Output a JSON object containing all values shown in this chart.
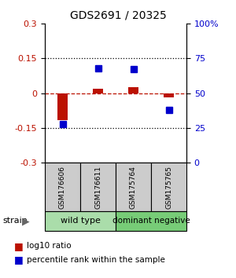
{
  "title": "GDS2691 / 20325",
  "samples": [
    "GSM176606",
    "GSM176611",
    "GSM175764",
    "GSM175765"
  ],
  "log10_ratio": [
    -0.115,
    0.02,
    0.025,
    -0.02
  ],
  "percentile_rank": [
    28,
    68,
    67,
    38
  ],
  "ylim_left": [
    -0.3,
    0.3
  ],
  "ylim_right": [
    0,
    100
  ],
  "yticks_left": [
    -0.3,
    -0.15,
    0,
    0.15,
    0.3
  ],
  "yticks_right": [
    0,
    25,
    50,
    75,
    100
  ],
  "ytick_labels_right": [
    "0",
    "25",
    "50",
    "75",
    "100%"
  ],
  "red_color": "#bb1100",
  "blue_color": "#0000cc",
  "bar_width": 0.3,
  "marker_size": 6,
  "green_light": "#aaddaa",
  "green_dark": "#77cc77",
  "gray_color": "#cccccc",
  "title_fontsize": 10,
  "tick_fontsize": 8,
  "sample_fontsize": 6.5,
  "group_fontsize": 8,
  "legend_fontsize": 7.5,
  "strain_fontsize": 8
}
